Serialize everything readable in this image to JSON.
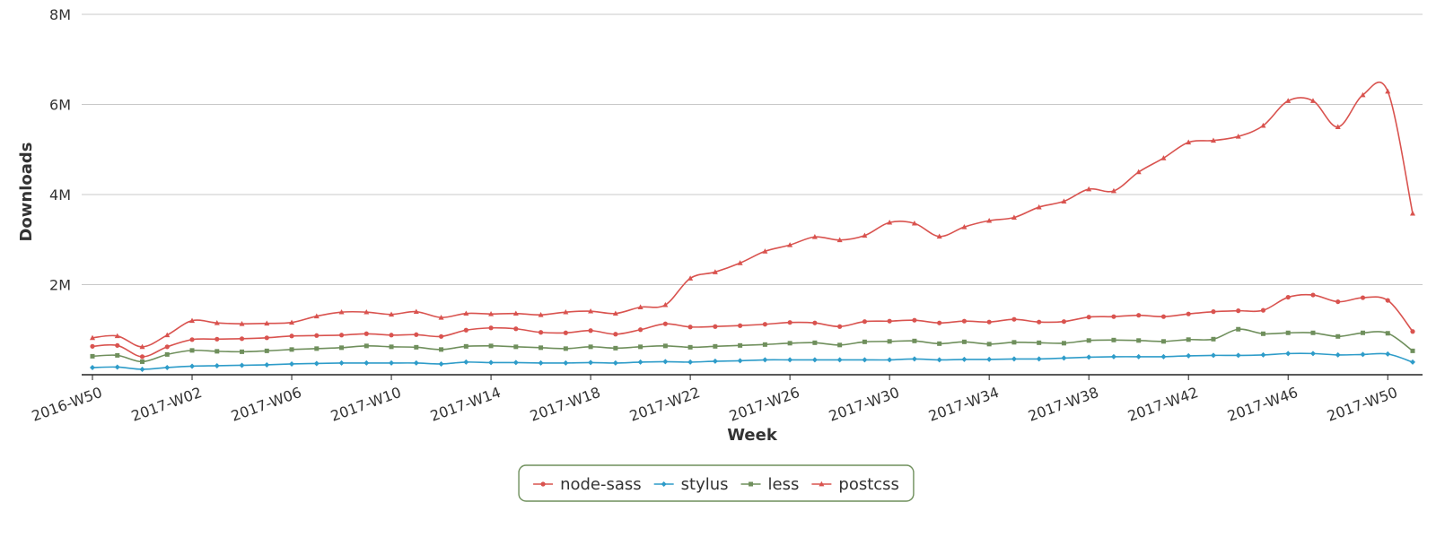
{
  "chart_data": {
    "type": "line",
    "xlabel": "Week",
    "ylabel": "Downloads",
    "ylim": [
      0,
      8000000
    ],
    "y_ticks": [
      "8M",
      "6M",
      "4M",
      "2M"
    ],
    "y_tick_values": [
      8000000,
      6000000,
      4000000,
      2000000
    ],
    "x_tick_labels": [
      "2016-W50",
      "2017-W02",
      "2017-W06",
      "2017-W10",
      "2017-W14",
      "2017-W18",
      "2017-W22",
      "2017-W26",
      "2017-W30",
      "2017-W34",
      "2017-W38",
      "2017-W42",
      "2017-W46",
      "2017-W50"
    ],
    "grid": "horizontal",
    "legend_position": "bottom-center",
    "categories": [
      "2016-W50",
      "2016-W51",
      "2016-W52",
      "2017-W01",
      "2017-W02",
      "2017-W03",
      "2017-W04",
      "2017-W05",
      "2017-W06",
      "2017-W07",
      "2017-W08",
      "2017-W09",
      "2017-W10",
      "2017-W11",
      "2017-W12",
      "2017-W13",
      "2017-W14",
      "2017-W15",
      "2017-W16",
      "2017-W17",
      "2017-W18",
      "2017-W19",
      "2017-W20",
      "2017-W21",
      "2017-W22",
      "2017-W23",
      "2017-W24",
      "2017-W25",
      "2017-W26",
      "2017-W27",
      "2017-W28",
      "2017-W29",
      "2017-W30",
      "2017-W31",
      "2017-W32",
      "2017-W33",
      "2017-W34",
      "2017-W35",
      "2017-W36",
      "2017-W37",
      "2017-W38",
      "2017-W39",
      "2017-W40",
      "2017-W41",
      "2017-W42",
      "2017-W43",
      "2017-W44",
      "2017-W45",
      "2017-W46",
      "2017-W47",
      "2017-W48",
      "2017-W49",
      "2017-W50",
      "2017-W51"
    ],
    "series": [
      {
        "name": "node-sass",
        "color": "#d9534f",
        "marker": "circle",
        "values": [
          630000,
          650000,
          400000,
          620000,
          780000,
          790000,
          800000,
          820000,
          860000,
          870000,
          880000,
          910000,
          880000,
          890000,
          850000,
          990000,
          1040000,
          1020000,
          940000,
          930000,
          980000,
          900000,
          1000000,
          1130000,
          1060000,
          1070000,
          1090000,
          1120000,
          1160000,
          1150000,
          1070000,
          1180000,
          1190000,
          1210000,
          1150000,
          1190000,
          1170000,
          1230000,
          1170000,
          1180000,
          1280000,
          1290000,
          1320000,
          1290000,
          1350000,
          1400000,
          1420000,
          1430000,
          1720000,
          1770000,
          1620000,
          1710000,
          1650000,
          960000
        ]
      },
      {
        "name": "stylus",
        "color": "#2e9cc9",
        "marker": "diamond",
        "values": [
          160000,
          170000,
          120000,
          160000,
          190000,
          200000,
          210000,
          220000,
          240000,
          250000,
          260000,
          260000,
          260000,
          260000,
          240000,
          280000,
          270000,
          270000,
          260000,
          260000,
          270000,
          260000,
          280000,
          290000,
          280000,
          300000,
          310000,
          330000,
          330000,
          330000,
          330000,
          330000,
          330000,
          350000,
          330000,
          340000,
          340000,
          350000,
          350000,
          370000,
          390000,
          400000,
          400000,
          400000,
          420000,
          430000,
          430000,
          440000,
          470000,
          470000,
          440000,
          450000,
          460000,
          280000
        ]
      },
      {
        "name": "less",
        "color": "#6f8f5c",
        "marker": "square",
        "values": [
          410000,
          430000,
          290000,
          450000,
          540000,
          520000,
          510000,
          530000,
          560000,
          580000,
          600000,
          640000,
          620000,
          610000,
          560000,
          630000,
          640000,
          620000,
          600000,
          580000,
          620000,
          590000,
          620000,
          640000,
          610000,
          630000,
          650000,
          670000,
          700000,
          710000,
          660000,
          730000,
          740000,
          750000,
          690000,
          730000,
          680000,
          720000,
          710000,
          700000,
          760000,
          770000,
          760000,
          740000,
          780000,
          790000,
          1010000,
          910000,
          930000,
          930000,
          850000,
          930000,
          920000,
          530000
        ]
      },
      {
        "name": "postcss",
        "color": "#d9534f",
        "marker": "triangle",
        "values": [
          820000,
          860000,
          620000,
          880000,
          1200000,
          1150000,
          1130000,
          1140000,
          1160000,
          1300000,
          1390000,
          1390000,
          1340000,
          1400000,
          1270000,
          1360000,
          1350000,
          1360000,
          1330000,
          1390000,
          1410000,
          1360000,
          1500000,
          1550000,
          2140000,
          2280000,
          2480000,
          2740000,
          2880000,
          3060000,
          2990000,
          3090000,
          3380000,
          3360000,
          3070000,
          3280000,
          3420000,
          3490000,
          3720000,
          3850000,
          4120000,
          4080000,
          4500000,
          4810000,
          5160000,
          5200000,
          5290000,
          5530000,
          6080000,
          6080000,
          5500000,
          6210000,
          6290000,
          3580000
        ]
      }
    ]
  }
}
